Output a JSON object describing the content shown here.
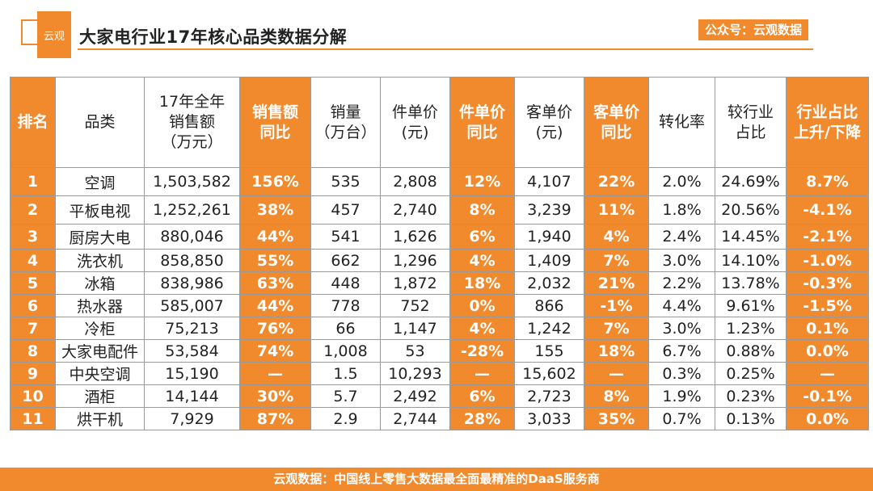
{
  "header": {
    "logo_text": "云观",
    "title": "大家电行业17年核心品类数据分解",
    "badge": "公众号：云观数据"
  },
  "table": {
    "columns": [
      [
        "排名"
      ],
      [
        "品类"
      ],
      [
        "17年全年",
        "销售额",
        "（万元）"
      ],
      [
        "销售额",
        "同比"
      ],
      [
        "销量",
        "（万台）"
      ],
      [
        "件单价",
        "(元)"
      ],
      [
        "件单价",
        "同比"
      ],
      [
        "客单价",
        "(元)"
      ],
      [
        "客单价",
        "同比"
      ],
      [
        "转化率"
      ],
      [
        "较行业",
        "占比"
      ],
      [
        "行业占比",
        "上升/下降"
      ]
    ],
    "rows": [
      [
        "1",
        "空调",
        "1,503,582",
        "156%",
        "535",
        "2,808",
        "12%",
        "4,107",
        "22%",
        "2.0%",
        "24.69%",
        "8.7%"
      ],
      [
        "2",
        "平板电视",
        "1,252,261",
        "38%",
        "457",
        "2,740",
        "8%",
        "3,239",
        "11%",
        "1.8%",
        "20.56%",
        "-4.1%"
      ],
      [
        "3",
        "厨房大电",
        "880,046",
        "44%",
        "541",
        "1,626",
        "6%",
        "1,940",
        "4%",
        "2.4%",
        "14.45%",
        "-2.1%"
      ],
      [
        "4",
        "洗衣机",
        "858,850",
        "55%",
        "662",
        "1,296",
        "4%",
        "1,409",
        "7%",
        "3.0%",
        "14.10%",
        "-1.0%"
      ],
      [
        "5",
        "冰箱",
        "838,986",
        "63%",
        "448",
        "1,872",
        "18%",
        "2,032",
        "21%",
        "2.2%",
        "13.78%",
        "-0.3%"
      ],
      [
        "6",
        "热水器",
        "585,007",
        "44%",
        "778",
        "752",
        "0%",
        "866",
        "-1%",
        "4.4%",
        "9.61%",
        "-1.5%"
      ],
      [
        "7",
        "冷柜",
        "75,213",
        "76%",
        "66",
        "1,147",
        "4%",
        "1,242",
        "7%",
        "3.0%",
        "1.23%",
        "0.1%"
      ],
      [
        "8",
        "大家电配件",
        "53,584",
        "74%",
        "1,008",
        "53",
        "-28%",
        "155",
        "18%",
        "6.7%",
        "0.88%",
        "0.0%"
      ],
      [
        "9",
        "中央空调",
        "15,190",
        "—",
        "1.5",
        "10,293",
        "—",
        "15,602",
        "—",
        "0.3%",
        "0.25%",
        "—"
      ],
      [
        "10",
        "酒柜",
        "14,144",
        "30%",
        "5.7",
        "2,492",
        "6%",
        "2,723",
        "8%",
        "1.9%",
        "0.23%",
        "-0.1%"
      ],
      [
        "11",
        "烘干机",
        "7,929",
        "87%",
        "2.9",
        "2,744",
        "28%",
        "3,033",
        "35%",
        "0.7%",
        "0.13%",
        "0.0%"
      ]
    ]
  },
  "footer": {
    "text": "云观数据：中国线上零售大数据最全面最精准的DaaS服务商"
  },
  "colors": {
    "accent": "#f08a2c"
  }
}
